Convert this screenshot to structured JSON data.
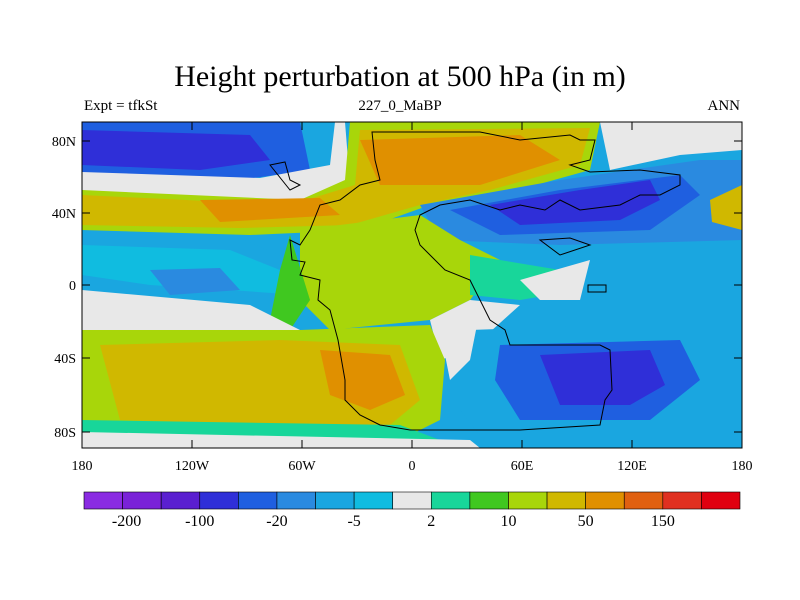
{
  "title": "Height perturbation at 500 hPa (in m)",
  "left_string": "Expt = tfkSt",
  "center_string": "227_0_MaBP",
  "right_string": "ANN",
  "y_ticks": [
    "80N",
    "40N",
    "0",
    "40S",
    "80S"
  ],
  "x_ticks": [
    "180",
    "120W",
    "60W",
    "0",
    "60E",
    "120E",
    "180"
  ],
  "colorbar": {
    "colors": [
      "#8a2be2",
      "#7a22d8",
      "#5a1fd0",
      "#2f2fd8",
      "#1f5fe0",
      "#2a8ae0",
      "#1aa6e0",
      "#10bce0",
      "#e8e8e8",
      "#18d69a",
      "#40c820",
      "#a8d60a",
      "#d0b800",
      "#e09000",
      "#e06010",
      "#e03020",
      "#e00010"
    ],
    "labels": [
      "-200",
      "-100",
      "-20",
      "-5",
      "2",
      "10",
      "50",
      "150"
    ]
  },
  "chart_data": {
    "type": "heatmap",
    "title": "Height perturbation at 500 hPa (in m)",
    "xlabel": "",
    "ylabel": "",
    "x_range": [
      -180,
      180
    ],
    "y_range": [
      -90,
      90
    ],
    "levels": [
      "-200",
      "-100",
      "-20",
      "-5",
      "2",
      "10",
      "50",
      "150"
    ],
    "grid": false
  }
}
